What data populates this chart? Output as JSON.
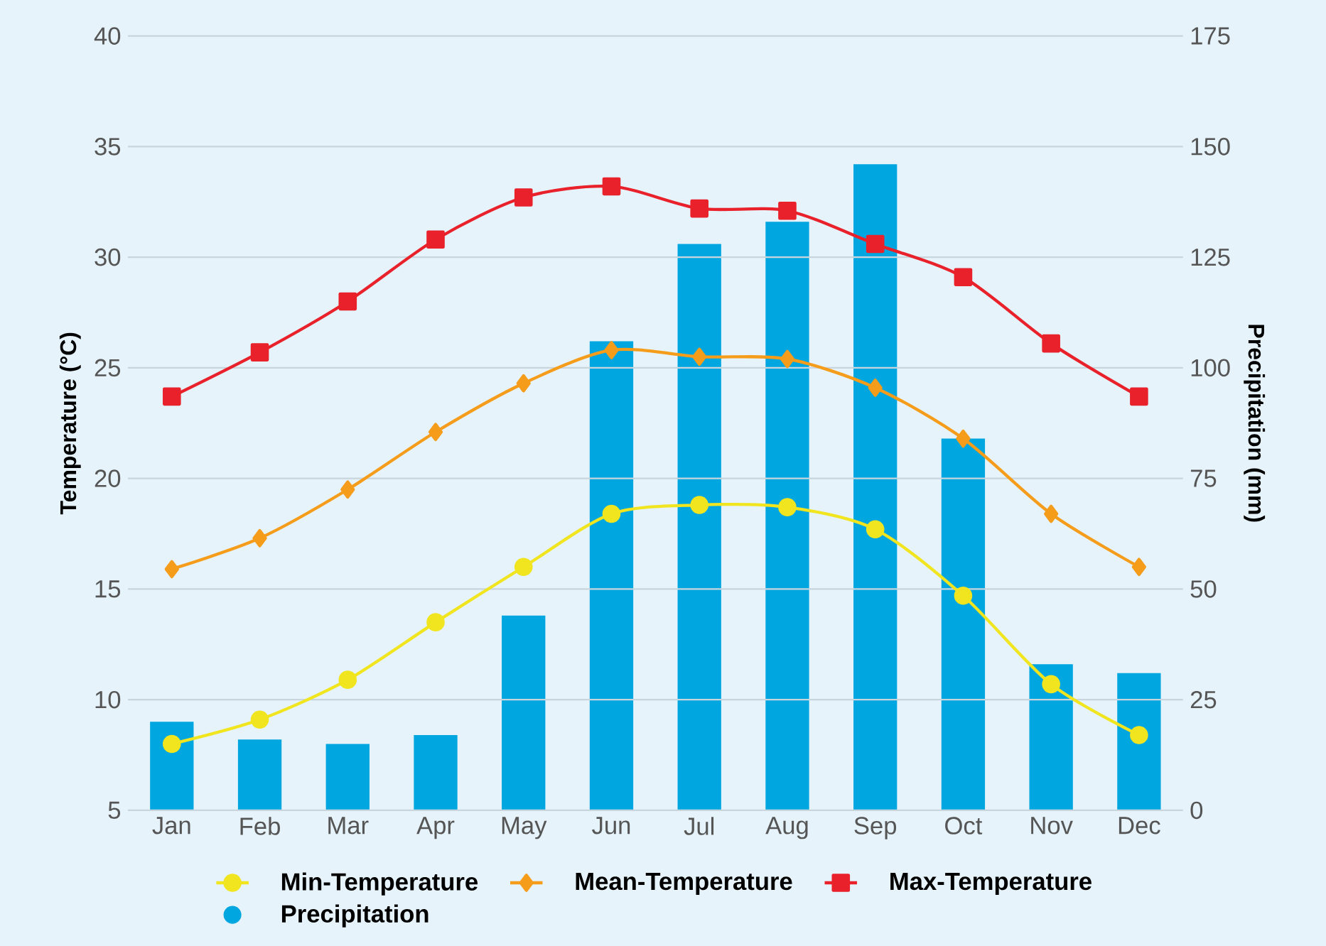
{
  "chart_data": {
    "type": "line",
    "categories": [
      "Jan",
      "Feb",
      "Mar",
      "Apr",
      "May",
      "Jun",
      "Jul",
      "Aug",
      "Sep",
      "Oct",
      "Nov",
      "Dec"
    ],
    "ylabel": "Temperature (°C)",
    "y2label": "Precipitation (mm)",
    "ylim": [
      5,
      40
    ],
    "yticks": [
      5,
      10,
      15,
      20,
      25,
      30,
      35,
      40
    ],
    "y2lim": [
      0,
      175
    ],
    "y2ticks": [
      0,
      25,
      50,
      75,
      100,
      125,
      150,
      175
    ],
    "grid": "y",
    "legend": "bottom",
    "line_style": "solid",
    "series": [
      {
        "name": "Min-Temperature",
        "color": "#f0e51e",
        "marker": "circle",
        "values": [
          8.0,
          9.1,
          10.9,
          13.5,
          16.0,
          18.4,
          18.8,
          18.7,
          17.7,
          14.7,
          10.7,
          8.4
        ]
      },
      {
        "name": "Mean-Temperature",
        "color": "#f59c1a",
        "marker": "diamond",
        "values": [
          15.9,
          17.3,
          19.5,
          22.1,
          24.3,
          25.8,
          25.5,
          25.4,
          24.1,
          21.8,
          18.4,
          16.0
        ]
      },
      {
        "name": "Max-Temperature",
        "color": "#e8212a",
        "marker": "square",
        "values": [
          23.7,
          25.7,
          28.0,
          30.8,
          32.7,
          33.2,
          32.2,
          32.1,
          30.6,
          29.1,
          26.1,
          23.7
        ]
      },
      {
        "name": "Precipitation",
        "type": "bar",
        "axis": "y2",
        "color": "#00a6e0",
        "marker": "circle",
        "values": [
          20,
          16,
          15,
          17,
          44,
          106,
          128,
          133,
          146,
          84,
          33,
          31
        ]
      }
    ]
  }
}
